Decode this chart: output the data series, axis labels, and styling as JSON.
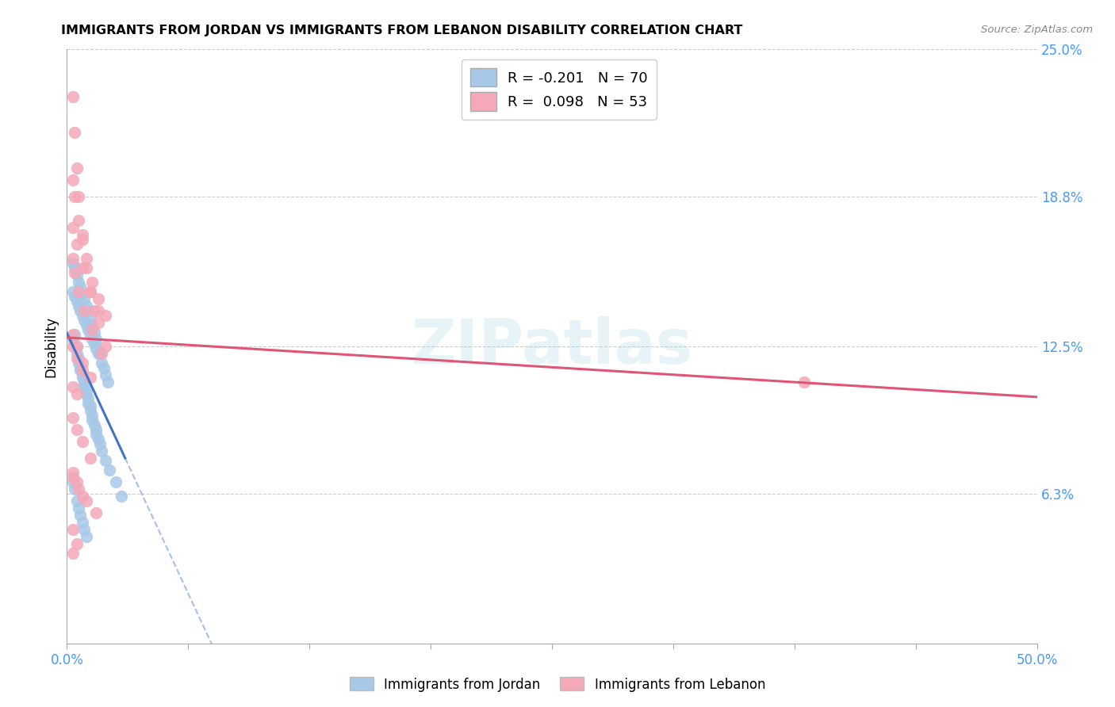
{
  "title": "IMMIGRANTS FROM JORDAN VS IMMIGRANTS FROM LEBANON DISABILITY CORRELATION CHART",
  "source": "Source: ZipAtlas.com",
  "ylabel": "Disability",
  "xlim": [
    0.0,
    0.5
  ],
  "ylim": [
    0.0,
    0.25
  ],
  "ytick_positions": [
    0.0,
    0.063,
    0.125,
    0.188,
    0.25
  ],
  "yticklabels_right": [
    "",
    "6.3%",
    "12.5%",
    "18.8%",
    "25.0%"
  ],
  "xtick_positions": [
    0.0,
    0.0625,
    0.125,
    0.1875,
    0.25,
    0.3125,
    0.375,
    0.4375,
    0.5
  ],
  "xticklabels": [
    "0.0%",
    "",
    "",
    "",
    "",
    "",
    "",
    "",
    "50.0%"
  ],
  "jordan_color": "#a8c8e8",
  "lebanon_color": "#f4a8b8",
  "jordan_R": -0.201,
  "jordan_N": 70,
  "lebanon_R": 0.098,
  "lebanon_N": 53,
  "jordan_line_color": "#4472c4",
  "lebanon_line_color": "#e05575",
  "watermark": "ZIPatlas",
  "jordan_x": [
    0.003,
    0.004,
    0.005,
    0.005,
    0.006,
    0.006,
    0.007,
    0.007,
    0.008,
    0.008,
    0.009,
    0.009,
    0.01,
    0.01,
    0.011,
    0.011,
    0.012,
    0.012,
    0.013,
    0.013,
    0.014,
    0.015,
    0.015,
    0.016,
    0.017,
    0.018,
    0.02,
    0.022,
    0.025,
    0.028,
    0.003,
    0.004,
    0.005,
    0.006,
    0.007,
    0.008,
    0.009,
    0.01,
    0.011,
    0.012,
    0.013,
    0.014,
    0.015,
    0.016,
    0.018,
    0.02,
    0.003,
    0.004,
    0.005,
    0.006,
    0.007,
    0.008,
    0.009,
    0.01,
    0.011,
    0.012,
    0.013,
    0.014,
    0.015,
    0.017,
    0.019,
    0.021,
    0.003,
    0.004,
    0.005,
    0.006,
    0.007,
    0.008,
    0.009,
    0.01
  ],
  "jordan_y": [
    0.128,
    0.13,
    0.125,
    0.122,
    0.12,
    0.118,
    0.116,
    0.115,
    0.113,
    0.112,
    0.11,
    0.108,
    0.107,
    0.105,
    0.103,
    0.101,
    0.1,
    0.098,
    0.096,
    0.094,
    0.092,
    0.09,
    0.088,
    0.086,
    0.084,
    0.081,
    0.077,
    0.073,
    0.068,
    0.062,
    0.148,
    0.146,
    0.144,
    0.142,
    0.14,
    0.138,
    0.136,
    0.134,
    0.132,
    0.13,
    0.128,
    0.126,
    0.124,
    0.122,
    0.118,
    0.113,
    0.16,
    0.158,
    0.155,
    0.152,
    0.15,
    0.147,
    0.145,
    0.142,
    0.14,
    0.137,
    0.134,
    0.131,
    0.128,
    0.122,
    0.116,
    0.11,
    0.068,
    0.065,
    0.06,
    0.057,
    0.054,
    0.051,
    0.048,
    0.045
  ],
  "lebanon_x": [
    0.003,
    0.004,
    0.005,
    0.006,
    0.008,
    0.01,
    0.012,
    0.014,
    0.016,
    0.02,
    0.003,
    0.004,
    0.006,
    0.008,
    0.01,
    0.013,
    0.016,
    0.02,
    0.003,
    0.005,
    0.008,
    0.012,
    0.016,
    0.003,
    0.004,
    0.006,
    0.009,
    0.013,
    0.018,
    0.003,
    0.005,
    0.008,
    0.012,
    0.003,
    0.005,
    0.008,
    0.003,
    0.005,
    0.38,
    0.003,
    0.005,
    0.008,
    0.012,
    0.003,
    0.006,
    0.01,
    0.015,
    0.003,
    0.005,
    0.003,
    0.005,
    0.008,
    0.003
  ],
  "lebanon_y": [
    0.23,
    0.215,
    0.2,
    0.188,
    0.172,
    0.158,
    0.148,
    0.14,
    0.135,
    0.125,
    0.195,
    0.188,
    0.178,
    0.17,
    0.162,
    0.152,
    0.145,
    0.138,
    0.175,
    0.168,
    0.158,
    0.148,
    0.14,
    0.162,
    0.156,
    0.148,
    0.14,
    0.132,
    0.122,
    0.13,
    0.125,
    0.118,
    0.112,
    0.125,
    0.12,
    0.115,
    0.108,
    0.105,
    0.11,
    0.095,
    0.09,
    0.085,
    0.078,
    0.07,
    0.065,
    0.06,
    0.055,
    0.048,
    0.042,
    0.072,
    0.068,
    0.062,
    0.038
  ]
}
